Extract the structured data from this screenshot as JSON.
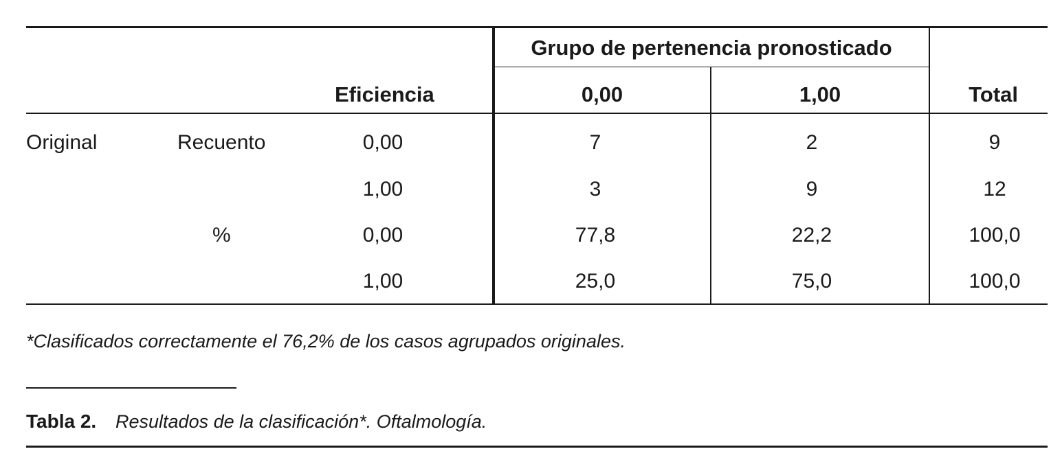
{
  "table": {
    "group_header": "Grupo de pertenencia pronosticado",
    "col_eficiencia": "Eficiencia",
    "col_000": "0,00",
    "col_100": "1,00",
    "col_total": "Total",
    "rows": [
      {
        "label_a": "Original",
        "label_b": "Recuento",
        "eficiencia": "0,00",
        "v0": "7",
        "v1": "2",
        "total": "9"
      },
      {
        "label_a": "",
        "label_b": "",
        "eficiencia": "1,00",
        "v0": "3",
        "v1": "9",
        "total": "12"
      },
      {
        "label_a": "",
        "label_b": "%",
        "eficiencia": "0,00",
        "v0": "77,8",
        "v1": "22,2",
        "total": "100,0"
      },
      {
        "label_a": "",
        "label_b": "",
        "eficiencia": "1,00",
        "v0": "25,0",
        "v1": "75,0",
        "total": "100,0"
      }
    ]
  },
  "footnote": "*Clasificados correctamente el 76,2% de los casos agrupados originales.",
  "caption": {
    "label": "Tabla 2.",
    "text": "Resultados de la clasificación*. Oftalmología."
  }
}
